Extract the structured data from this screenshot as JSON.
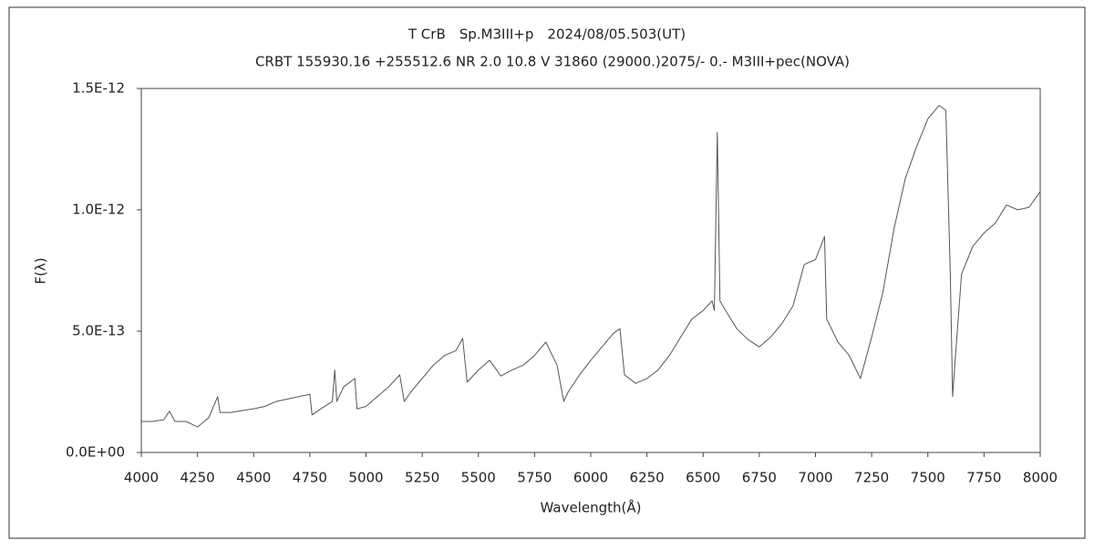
{
  "chart_data": {
    "type": "line",
    "title": "T CrB　Sp.M3III+p　2024/08/05.503(UT)",
    "subtitle": "CRBT 155930.16 +255512.6 NR 2.0 10.8 V 31860 (29000.)2075/-  0.- M3III+pec(NOVA)",
    "x_label": "Wavelength(Å)",
    "y_label": "F(λ)",
    "xlim": [
      4000,
      8000
    ],
    "xticks": [
      4000,
      4250,
      4500,
      4750,
      5000,
      5250,
      5500,
      5750,
      6000,
      6250,
      6500,
      6750,
      7000,
      7250,
      7500,
      7750,
      8000
    ],
    "ylim": [
      0,
      1.5e-12
    ],
    "yticks": [
      {
        "value": 0,
        "label": "0.0E+00"
      },
      {
        "value": 5e-13,
        "label": "5.0E-13"
      },
      {
        "value": 1e-12,
        "label": "1.0E-12"
      },
      {
        "value": 1.5e-12,
        "label": "1.5E-12"
      }
    ],
    "grid": false,
    "series": [
      {
        "color": "#555555",
        "x": [
          4000,
          4050,
          4100,
          4125,
          4150,
          4200,
          4250,
          4300,
          4340,
          4350,
          4400,
          4450,
          4500,
          4550,
          4600,
          4650,
          4700,
          4750,
          4760,
          4800,
          4850,
          4861,
          4870,
          4900,
          4950,
          4960,
          5000,
          5050,
          5100,
          5150,
          5170,
          5200,
          5250,
          5300,
          5350,
          5400,
          5430,
          5450,
          5500,
          5550,
          5600,
          5650,
          5700,
          5750,
          5800,
          5850,
          5880,
          5900,
          5950,
          6000,
          6050,
          6100,
          6130,
          6150,
          6200,
          6250,
          6300,
          6350,
          6400,
          6450,
          6500,
          6540,
          6550,
          6563,
          6575,
          6600,
          6650,
          6700,
          6750,
          6800,
          6850,
          6900,
          6950,
          7000,
          7040,
          7050,
          7100,
          7150,
          7200,
          7250,
          7300,
          7350,
          7400,
          7450,
          7500,
          7550,
          7580,
          7600,
          7610,
          7620,
          7650,
          7700,
          7750,
          7800,
          7850,
          7900,
          7950,
          8000
        ],
        "values": [
          1.28e-13,
          1.28e-13,
          1.35e-13,
          1.7e-13,
          1.28e-13,
          1.28e-13,
          1.05e-13,
          1.43e-13,
          2.3e-13,
          1.65e-13,
          1.65e-13,
          1.73e-13,
          1.8e-13,
          1.9e-13,
          2.1e-13,
          2.2e-13,
          2.3e-13,
          2.4e-13,
          1.55e-13,
          1.8e-13,
          2.1e-13,
          3.4e-13,
          2.1e-13,
          2.7e-13,
          3.05e-13,
          1.8e-13,
          1.9e-13,
          2.3e-13,
          2.7e-13,
          3.2e-13,
          2.1e-13,
          2.5e-13,
          3.05e-13,
          3.6e-13,
          4e-13,
          4.2e-13,
          4.7e-13,
          2.9e-13,
          3.4e-13,
          3.8e-13,
          3.15e-13,
          3.4e-13,
          3.6e-13,
          4e-13,
          4.55e-13,
          3.6e-13,
          2.1e-13,
          2.5e-13,
          3.2e-13,
          3.8e-13,
          4.35e-13,
          4.9e-13,
          5.1e-13,
          3.2e-13,
          2.85e-13,
          3.05e-13,
          3.4e-13,
          4e-13,
          4.75e-13,
          5.5e-13,
          5.85e-13,
          6.25e-13,
          5.85e-13,
          1.32e-12,
          6.25e-13,
          5.85e-13,
          5.1e-13,
          4.65e-13,
          4.35e-13,
          4.75e-13,
          5.3e-13,
          6.05e-13,
          7.75e-13,
          7.95e-13,
          8.9e-13,
          5.5e-13,
          4.55e-13,
          4e-13,
          3.05e-13,
          4.75e-13,
          6.6e-13,
          9.25e-13,
          1.13e-12,
          1.26e-12,
          1.375e-12,
          1.43e-12,
          1.41e-12,
          7.35e-13,
          2.3e-13,
          3.6e-13,
          7.35e-13,
          8.5e-13,
          9.05e-13,
          9.45e-13,
          1.02e-12,
          1e-12,
          1.01e-12,
          1.075e-12
        ]
      }
    ]
  }
}
